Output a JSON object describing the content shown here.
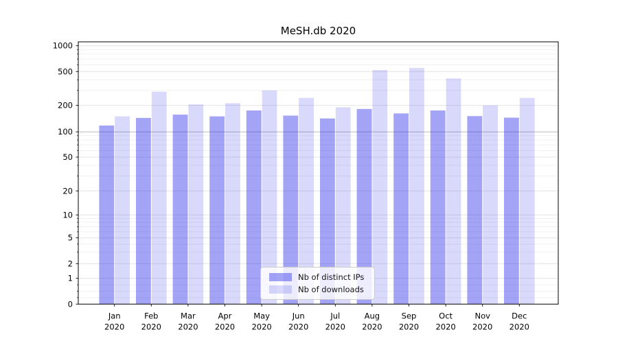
{
  "chart_data": {
    "type": "bar",
    "title": "MeSH.db 2020",
    "categories": [
      "Jan 2020",
      "Feb 2020",
      "Mar 2020",
      "Apr 2020",
      "May 2020",
      "Jun 2020",
      "Jul 2020",
      "Aug 2020",
      "Sep 2020",
      "Oct 2020",
      "Nov 2020",
      "Dec 2020"
    ],
    "x_tick_top": [
      "Jan",
      "Feb",
      "Mar",
      "Apr",
      "May",
      "Jun",
      "Jul",
      "Aug",
      "Sep",
      "Oct",
      "Nov",
      "Dec"
    ],
    "x_tick_bottom": [
      "2020",
      "2020",
      "2020",
      "2020",
      "2020",
      "2020",
      "2020",
      "2020",
      "2020",
      "2020",
      "2020",
      "2020"
    ],
    "series": [
      {
        "name": "Nb of distinct IPs",
        "color": "#2222E869",
        "values": [
          118,
          144,
          157,
          150,
          175,
          153,
          142,
          182,
          162,
          175,
          151,
          145
        ]
      },
      {
        "name": "Nb of downloads",
        "color": "#2222E82C",
        "values": [
          150,
          290,
          205,
          212,
          300,
          245,
          190,
          520,
          550,
          415,
          200,
          245
        ]
      }
    ],
    "yscale": "symlog",
    "ylim": [
      0,
      1100
    ],
    "y_ticks": [
      0,
      1,
      2,
      5,
      10,
      20,
      50,
      100,
      200,
      500,
      1000
    ],
    "y_tick_labels": [
      "0",
      "1",
      "2",
      "5",
      "10",
      "20",
      "50",
      "100",
      "200",
      "500",
      "1000"
    ],
    "y_minor_ticks": [
      0.25,
      0.5,
      0.75,
      3,
      4,
      6,
      7,
      8,
      9,
      30,
      40,
      60,
      70,
      80,
      90,
      300,
      400,
      600,
      700,
      800,
      900
    ],
    "grid": "both",
    "legend_position": "lower center"
  },
  "colors": {
    "bar_ips": "#2222E869",
    "bar_downloads": "#2222E82C",
    "grid_major": "#e4e4e4",
    "grid_minor": "#f1f1f1",
    "grid_hundred": "#bbbbbb",
    "axis": "#000000",
    "tick_label": "#000000"
  }
}
